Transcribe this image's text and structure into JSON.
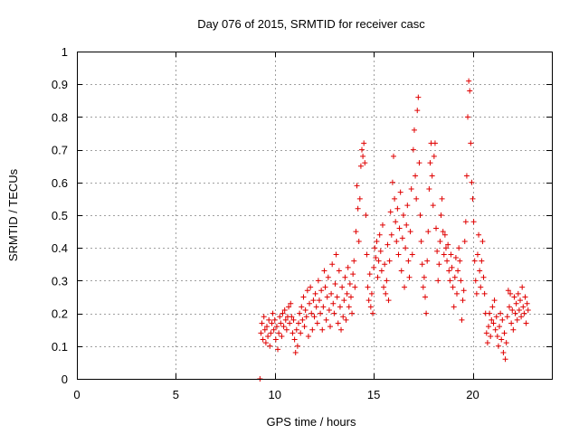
{
  "chart_data": {
    "type": "scatter",
    "title": "Day 076 of 2015, SRMTID for receiver casc",
    "xlabel": "GPS time / hours",
    "ylabel": "SRMTID / TECUs",
    "xlim": [
      0,
      24
    ],
    "ylim": [
      0,
      1
    ],
    "x_ticks": [
      0,
      5,
      10,
      15,
      20
    ],
    "x_tick_labels": [
      "0",
      "5",
      "10",
      "15",
      "20"
    ],
    "y_ticks": [
      0,
      0.1,
      0.2,
      0.3,
      0.4,
      0.5,
      0.6,
      0.7,
      0.8,
      0.9,
      1
    ],
    "y_tick_labels": [
      "0",
      "0.1",
      "0.2",
      "0.3",
      "0.4",
      "0.5",
      "0.6",
      "0.7",
      "0.8",
      "0.9",
      "1"
    ],
    "grid": true,
    "marker": "+",
    "color": "#e00000",
    "series": [
      {
        "name": "SRMTID",
        "points": [
          [
            9.25,
            0.0
          ],
          [
            9.3,
            0.14
          ],
          [
            9.35,
            0.17
          ],
          [
            9.4,
            0.12
          ],
          [
            9.45,
            0.19
          ],
          [
            9.5,
            0.15
          ],
          [
            9.55,
            0.11
          ],
          [
            9.6,
            0.16
          ],
          [
            9.65,
            0.13
          ],
          [
            9.7,
            0.18
          ],
          [
            9.75,
            0.1
          ],
          [
            9.8,
            0.14
          ],
          [
            9.85,
            0.17
          ],
          [
            9.9,
            0.2
          ],
          [
            9.95,
            0.15
          ],
          [
            10.0,
            0.18
          ],
          [
            10.05,
            0.12
          ],
          [
            10.1,
            0.16
          ],
          [
            10.15,
            0.09
          ],
          [
            10.2,
            0.14
          ],
          [
            10.25,
            0.19
          ],
          [
            10.3,
            0.17
          ],
          [
            10.35,
            0.13
          ],
          [
            10.4,
            0.2
          ],
          [
            10.45,
            0.16
          ],
          [
            10.5,
            0.21
          ],
          [
            10.55,
            0.18
          ],
          [
            10.6,
            0.15
          ],
          [
            10.65,
            0.19
          ],
          [
            10.7,
            0.22
          ],
          [
            10.75,
            0.17
          ],
          [
            10.8,
            0.23
          ],
          [
            10.85,
            0.19
          ],
          [
            10.9,
            0.14
          ],
          [
            10.95,
            0.18
          ],
          [
            11.0,
            0.12
          ],
          [
            11.05,
            0.08
          ],
          [
            11.1,
            0.15
          ],
          [
            11.15,
            0.1
          ],
          [
            11.2,
            0.17
          ],
          [
            11.25,
            0.2
          ],
          [
            11.3,
            0.14
          ],
          [
            11.35,
            0.22
          ],
          [
            11.4,
            0.18
          ],
          [
            11.45,
            0.25
          ],
          [
            11.5,
            0.16
          ],
          [
            11.55,
            0.21
          ],
          [
            11.6,
            0.19
          ],
          [
            11.65,
            0.27
          ],
          [
            11.7,
            0.13
          ],
          [
            11.75,
            0.23
          ],
          [
            11.8,
            0.28
          ],
          [
            11.85,
            0.2
          ],
          [
            11.9,
            0.15
          ],
          [
            11.95,
            0.24
          ],
          [
            12.0,
            0.19
          ],
          [
            12.05,
            0.26
          ],
          [
            12.1,
            0.22
          ],
          [
            12.15,
            0.17
          ],
          [
            12.2,
            0.3
          ],
          [
            12.25,
            0.24
          ],
          [
            12.3,
            0.2
          ],
          [
            12.35,
            0.27
          ],
          [
            12.4,
            0.15
          ],
          [
            12.45,
            0.22
          ],
          [
            12.5,
            0.33
          ],
          [
            12.55,
            0.28
          ],
          [
            12.6,
            0.18
          ],
          [
            12.65,
            0.25
          ],
          [
            12.7,
            0.31
          ],
          [
            12.75,
            0.21
          ],
          [
            12.8,
            0.16
          ],
          [
            12.85,
            0.26
          ],
          [
            12.9,
            0.35
          ],
          [
            12.95,
            0.23
          ],
          [
            13.0,
            0.2
          ],
          [
            13.05,
            0.29
          ],
          [
            13.1,
            0.38
          ],
          [
            13.15,
            0.25
          ],
          [
            13.2,
            0.17
          ],
          [
            13.25,
            0.33
          ],
          [
            13.3,
            0.22
          ],
          [
            13.35,
            0.15
          ],
          [
            13.4,
            0.28
          ],
          [
            13.45,
            0.19
          ],
          [
            13.5,
            0.24
          ],
          [
            13.55,
            0.31
          ],
          [
            13.6,
            0.18
          ],
          [
            13.65,
            0.26
          ],
          [
            13.7,
            0.34
          ],
          [
            13.75,
            0.22
          ],
          [
            13.8,
            0.29
          ],
          [
            13.85,
            0.25
          ],
          [
            13.9,
            0.2
          ],
          [
            13.95,
            0.32
          ],
          [
            14.0,
            0.36
          ],
          [
            14.05,
            0.28
          ],
          [
            14.1,
            0.45
          ],
          [
            14.15,
            0.59
          ],
          [
            14.2,
            0.52
          ],
          [
            14.25,
            0.42
          ],
          [
            14.3,
            0.55
          ],
          [
            14.35,
            0.65
          ],
          [
            14.4,
            0.7
          ],
          [
            14.45,
            0.68
          ],
          [
            14.5,
            0.72
          ],
          [
            14.55,
            0.66
          ],
          [
            14.6,
            0.5
          ],
          [
            14.65,
            0.38
          ],
          [
            14.7,
            0.28
          ],
          [
            14.75,
            0.24
          ],
          [
            14.8,
            0.32
          ],
          [
            14.85,
            0.22
          ],
          [
            14.9,
            0.26
          ],
          [
            14.95,
            0.2
          ],
          [
            15.0,
            0.34
          ],
          [
            15.05,
            0.4
          ],
          [
            15.1,
            0.37
          ],
          [
            15.15,
            0.42
          ],
          [
            15.2,
            0.31
          ],
          [
            15.25,
            0.36
          ],
          [
            15.3,
            0.44
          ],
          [
            15.35,
            0.39
          ],
          [
            15.4,
            0.33
          ],
          [
            15.45,
            0.47
          ],
          [
            15.5,
            0.28
          ],
          [
            15.55,
            0.35
          ],
          [
            15.6,
            0.26
          ],
          [
            15.65,
            0.3
          ],
          [
            15.7,
            0.41
          ],
          [
            15.75,
            0.24
          ],
          [
            15.8,
            0.36
          ],
          [
            15.85,
            0.51
          ],
          [
            15.9,
            0.44
          ],
          [
            15.95,
            0.6
          ],
          [
            16.0,
            0.68
          ],
          [
            16.05,
            0.55
          ],
          [
            16.1,
            0.48
          ],
          [
            16.15,
            0.42
          ],
          [
            16.2,
            0.52
          ],
          [
            16.25,
            0.38
          ],
          [
            16.3,
            0.46
          ],
          [
            16.35,
            0.57
          ],
          [
            16.4,
            0.33
          ],
          [
            16.45,
            0.43
          ],
          [
            16.5,
            0.5
          ],
          [
            16.55,
            0.28
          ],
          [
            16.6,
            0.4
          ],
          [
            16.65,
            0.47
          ],
          [
            16.7,
            0.53
          ],
          [
            16.75,
            0.36
          ],
          [
            16.8,
            0.31
          ],
          [
            16.85,
            0.45
          ],
          [
            16.9,
            0.58
          ],
          [
            16.95,
            0.38
          ],
          [
            17.0,
            0.7
          ],
          [
            17.05,
            0.76
          ],
          [
            17.1,
            0.62
          ],
          [
            17.15,
            0.55
          ],
          [
            17.2,
            0.82
          ],
          [
            17.25,
            0.86
          ],
          [
            17.3,
            0.66
          ],
          [
            17.35,
            0.5
          ],
          [
            17.4,
            0.42
          ],
          [
            17.45,
            0.35
          ],
          [
            17.5,
            0.28
          ],
          [
            17.55,
            0.31
          ],
          [
            17.6,
            0.25
          ],
          [
            17.65,
            0.2
          ],
          [
            17.7,
            0.36
          ],
          [
            17.75,
            0.45
          ],
          [
            17.8,
            0.58
          ],
          [
            17.85,
            0.66
          ],
          [
            17.9,
            0.72
          ],
          [
            17.95,
            0.62
          ],
          [
            18.0,
            0.53
          ],
          [
            18.05,
            0.68
          ],
          [
            18.1,
            0.72
          ],
          [
            18.15,
            0.46
          ],
          [
            18.2,
            0.39
          ],
          [
            18.25,
            0.3
          ],
          [
            18.3,
            0.35
          ],
          [
            18.35,
            0.42
          ],
          [
            18.4,
            0.5
          ],
          [
            18.45,
            0.55
          ],
          [
            18.5,
            0.45
          ],
          [
            18.55,
            0.38
          ],
          [
            18.6,
            0.44
          ],
          [
            18.65,
            0.4
          ],
          [
            18.7,
            0.36
          ],
          [
            18.75,
            0.41
          ],
          [
            18.8,
            0.33
          ],
          [
            18.85,
            0.3
          ],
          [
            18.9,
            0.38
          ],
          [
            18.95,
            0.34
          ],
          [
            19.0,
            0.28
          ],
          [
            19.05,
            0.22
          ],
          [
            19.1,
            0.31
          ],
          [
            19.15,
            0.37
          ],
          [
            19.2,
            0.26
          ],
          [
            19.25,
            0.33
          ],
          [
            19.3,
            0.4
          ],
          [
            19.35,
            0.36
          ],
          [
            19.4,
            0.3
          ],
          [
            19.45,
            0.18
          ],
          [
            19.5,
            0.24
          ],
          [
            19.55,
            0.27
          ],
          [
            19.6,
            0.42
          ],
          [
            19.65,
            0.48
          ],
          [
            19.7,
            0.62
          ],
          [
            19.75,
            0.8
          ],
          [
            19.8,
            0.91
          ],
          [
            19.85,
            0.88
          ],
          [
            19.9,
            0.72
          ],
          [
            19.95,
            0.6
          ],
          [
            20.0,
            0.55
          ],
          [
            20.05,
            0.48
          ],
          [
            20.1,
            0.36
          ],
          [
            20.15,
            0.3
          ],
          [
            20.2,
            0.26
          ],
          [
            20.25,
            0.38
          ],
          [
            20.3,
            0.44
          ],
          [
            20.35,
            0.33
          ],
          [
            20.4,
            0.28
          ],
          [
            20.45,
            0.36
          ],
          [
            20.5,
            0.42
          ],
          [
            20.55,
            0.31
          ],
          [
            20.6,
            0.26
          ],
          [
            20.65,
            0.2
          ],
          [
            20.7,
            0.14
          ],
          [
            20.75,
            0.11
          ],
          [
            20.8,
            0.16
          ],
          [
            20.85,
            0.2
          ],
          [
            20.9,
            0.13
          ],
          [
            20.95,
            0.18
          ],
          [
            21.0,
            0.22
          ],
          [
            21.05,
            0.17
          ],
          [
            21.1,
            0.24
          ],
          [
            21.15,
            0.15
          ],
          [
            21.2,
            0.19
          ],
          [
            21.25,
            0.13
          ],
          [
            21.3,
            0.1
          ],
          [
            21.35,
            0.16
          ],
          [
            21.4,
            0.2
          ],
          [
            21.45,
            0.12
          ],
          [
            21.5,
            0.18
          ],
          [
            21.55,
            0.08
          ],
          [
            21.6,
            0.14
          ],
          [
            21.65,
            0.06
          ],
          [
            21.7,
            0.11
          ],
          [
            21.75,
            0.19
          ],
          [
            21.8,
            0.27
          ],
          [
            21.85,
            0.22
          ],
          [
            21.9,
            0.26
          ],
          [
            21.95,
            0.17
          ],
          [
            22.0,
            0.21
          ],
          [
            22.05,
            0.15
          ],
          [
            22.1,
            0.25
          ],
          [
            22.15,
            0.2
          ],
          [
            22.2,
            0.23
          ],
          [
            22.25,
            0.18
          ],
          [
            22.3,
            0.26
          ],
          [
            22.35,
            0.21
          ],
          [
            22.4,
            0.24
          ],
          [
            22.45,
            0.19
          ],
          [
            22.5,
            0.28
          ],
          [
            22.55,
            0.22
          ],
          [
            22.6,
            0.2
          ],
          [
            22.65,
            0.25
          ],
          [
            22.7,
            0.17
          ],
          [
            22.75,
            0.23
          ],
          [
            22.8,
            0.21
          ]
        ]
      }
    ]
  }
}
